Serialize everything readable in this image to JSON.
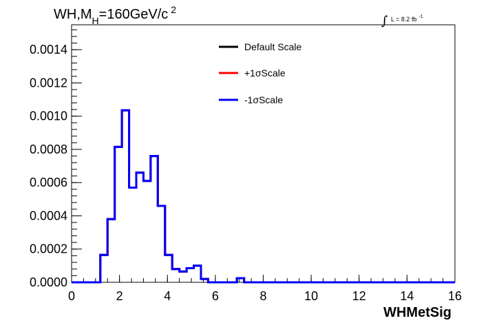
{
  "chart_data": {
    "type": "line",
    "title_parts": {
      "prefix": "WH,M",
      "subscript": "H",
      "mid": "=160GeV/c",
      "superscript": "2"
    },
    "lumi": {
      "integral": "∫",
      "text": "L = 8.2 fb",
      "superscript": "-1"
    },
    "xlabel": "WHMetSig",
    "ylabel": "",
    "xlim": [
      0,
      16
    ],
    "ylim": [
      0,
      0.00155
    ],
    "x_ticks": [
      0,
      2,
      4,
      6,
      8,
      10,
      12,
      14,
      16
    ],
    "x_tick_labels": [
      "0",
      "2",
      "4",
      "6",
      "8",
      "10",
      "12",
      "14",
      "16"
    ],
    "y_ticks": [
      0,
      0.0002,
      0.0004,
      0.0006,
      0.0008,
      0.001,
      0.0012,
      0.0014
    ],
    "y_tick_labels": [
      "0.0000",
      "0.0002",
      "0.0004",
      "0.0006",
      "0.0008",
      "0.0010",
      "0.0012",
      "0.0014"
    ],
    "bin_edges": [
      0,
      0.3,
      0.6,
      0.9,
      1.2,
      1.5,
      1.8,
      2.1,
      2.4,
      2.7,
      3.0,
      3.3,
      3.6,
      3.9,
      4.2,
      4.5,
      4.8,
      5.1,
      5.4,
      5.7,
      6.0,
      6.3,
      6.6,
      6.9,
      7.2,
      7.5,
      7.8,
      8.1,
      8.4,
      8.7,
      9.0,
      9.3,
      9.6,
      9.9,
      10.2,
      10.5,
      10.8,
      11.1,
      11.4,
      11.7,
      12.0,
      12.3,
      12.6,
      12.9,
      13.2,
      13.5,
      13.8,
      14.1,
      14.4,
      14.7,
      15.0,
      15.3,
      15.6,
      16.0
    ],
    "series": [
      {
        "name": "Default Scale",
        "color": "#000000",
        "values": [
          0,
          0,
          0,
          0,
          0.000165,
          0.00038,
          0.000815,
          0.001035,
          0.00057,
          0.00066,
          0.00061,
          0.00076,
          0.00046,
          0.000165,
          8e-05,
          6.5e-05,
          8.5e-05,
          0.0001,
          2e-05,
          0,
          0,
          0,
          0,
          2.5e-05,
          0,
          0,
          0,
          0,
          0,
          0,
          0,
          0,
          0,
          0,
          0,
          0,
          0,
          0,
          0,
          0,
          0,
          0,
          0,
          0,
          0,
          0,
          0,
          0,
          0,
          0,
          0,
          0,
          0
        ]
      },
      {
        "name": "+1σScale",
        "color": "#ff0000",
        "values": [
          0,
          0,
          0,
          0,
          0.000165,
          0.00038,
          0.000815,
          0.001035,
          0.00057,
          0.00066,
          0.00061,
          0.00076,
          0.00046,
          0.000165,
          8e-05,
          6.5e-05,
          8.5e-05,
          0.0001,
          2e-05,
          0,
          0,
          0,
          0,
          2.5e-05,
          0,
          0,
          0,
          0,
          0,
          0,
          0,
          0,
          0,
          0,
          0,
          0,
          0,
          0,
          0,
          0,
          0,
          0,
          0,
          0,
          0,
          0,
          0,
          0,
          0,
          0,
          0,
          0,
          0
        ]
      },
      {
        "name": "-1σScale",
        "color": "#0000ff",
        "values": [
          0,
          0,
          0,
          0,
          0.000165,
          0.00038,
          0.000815,
          0.001035,
          0.00057,
          0.00066,
          0.00061,
          0.00076,
          0.00046,
          0.000165,
          8e-05,
          6.5e-05,
          8.5e-05,
          0.0001,
          2e-05,
          0,
          0,
          0,
          0,
          2.5e-05,
          0,
          0,
          0,
          0,
          0,
          0,
          0,
          0,
          0,
          0,
          0,
          0,
          0,
          0,
          0,
          0,
          0,
          0,
          0,
          0,
          0,
          0,
          0,
          0,
          0,
          0,
          0,
          0,
          0
        ]
      }
    ],
    "legend_position": "top-right",
    "grid": false
  }
}
